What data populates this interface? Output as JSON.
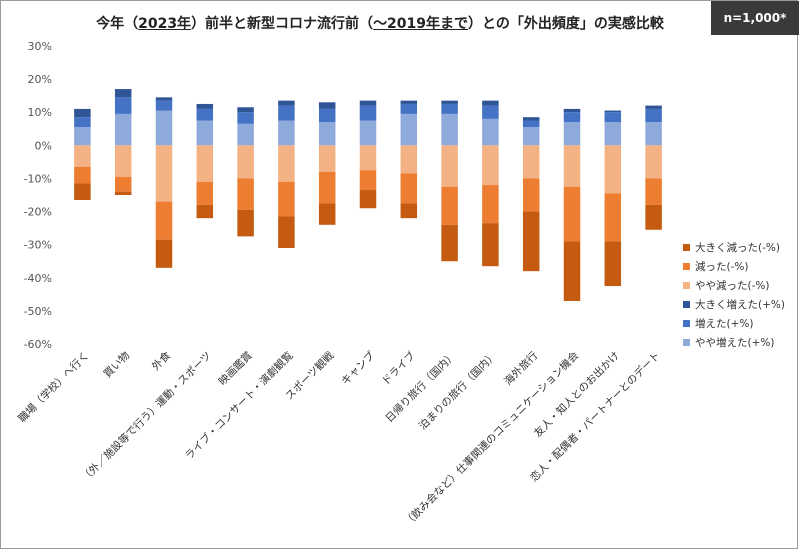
{
  "title_parts": {
    "p1": "今年（",
    "p2": "2023年",
    "p3": "）前半と新型コロナ流行前（",
    "p4": "～2019年まで",
    "p5": "）との「外出頻度」の実感比較"
  },
  "badge": "n=1,000*",
  "chart_data": {
    "type": "bar",
    "stacked": true,
    "title": "今年（2023年）前半と新型コロナ流行前（～2019年まで）との「外出頻度」の実感比較",
    "ylim": [
      -60,
      30
    ],
    "yticks": [
      "30%",
      "20%",
      "10%",
      "0%",
      "-10%",
      "-20%",
      "-30%",
      "-40%",
      "-50%",
      "-60%"
    ],
    "ytick_values": [
      30,
      20,
      10,
      0,
      -10,
      -20,
      -30,
      -40,
      -50,
      -60
    ],
    "categories": [
      "職場（学校）へ行く",
      "買い物",
      "外食",
      "（外／施設等で行う）運動・スポーツ",
      "映画鑑賞",
      "ライブ・コンサート・演劇観覧",
      "スポーツ観戦",
      "キャンプ",
      "ドライブ",
      "日帰り旅行（国内）",
      "泊まりの旅行（国内）",
      "海外旅行",
      "（飲み会など）仕事関連のコミュニケーション機会",
      "友人・知人とのお出かけ",
      "恋人・配偶者・パートナーとのデート"
    ],
    "series": [
      {
        "name": "やや増えた(+%)",
        "color": "#8eaadb",
        "values": [
          5.5,
          9.5,
          10.5,
          7.5,
          6.5,
          7.5,
          7.0,
          7.5,
          9.5,
          9.5,
          8.0,
          5.5,
          7.0,
          7.0,
          7.0
        ]
      },
      {
        "name": "増えた(+%)",
        "color": "#4472c4",
        "values": [
          3.0,
          5.0,
          3.0,
          3.5,
          3.5,
          4.5,
          4.0,
          4.5,
          3.0,
          3.0,
          4.0,
          2.0,
          3.0,
          3.0,
          4.0
        ]
      },
      {
        "name": "大きく増えた(+%)",
        "color": "#2f5597",
        "values": [
          2.5,
          2.5,
          1.0,
          1.5,
          1.5,
          1.5,
          2.0,
          1.5,
          1.0,
          1.0,
          1.5,
          1.0,
          1.0,
          0.5,
          1.0
        ]
      },
      {
        "name": "やや減った(-%)",
        "color": "#f4b183",
        "values": [
          -6.5,
          -9.5,
          -17.0,
          -11.0,
          -10.0,
          -11.0,
          -8.0,
          -7.5,
          -8.5,
          -12.5,
          -12.0,
          -10.0,
          -12.5,
          -14.5,
          -10.0
        ]
      },
      {
        "name": "減った(-%)",
        "color": "#ed7d31",
        "values": [
          -5.0,
          -4.5,
          -11.5,
          -7.0,
          -9.5,
          -10.5,
          -9.5,
          -6.0,
          -9.0,
          -11.5,
          -11.5,
          -10.0,
          -16.5,
          -14.5,
          -8.0
        ]
      },
      {
        "name": "大きく減った(-%)",
        "color": "#c55a11",
        "values": [
          -5.0,
          -1.0,
          -8.5,
          -4.0,
          -8.0,
          -9.5,
          -6.5,
          -5.5,
          -4.5,
          -11.0,
          -13.0,
          -18.0,
          -18.0,
          -13.5,
          -7.5
        ]
      }
    ],
    "legend_order": [
      "大きく減った(-%)",
      "減った(-%)",
      "やや減った(-%)",
      "大きく増えた(+%)",
      "増えた(+%)",
      "やや増えた(+%)"
    ],
    "legend_position": "right",
    "grid": false
  }
}
